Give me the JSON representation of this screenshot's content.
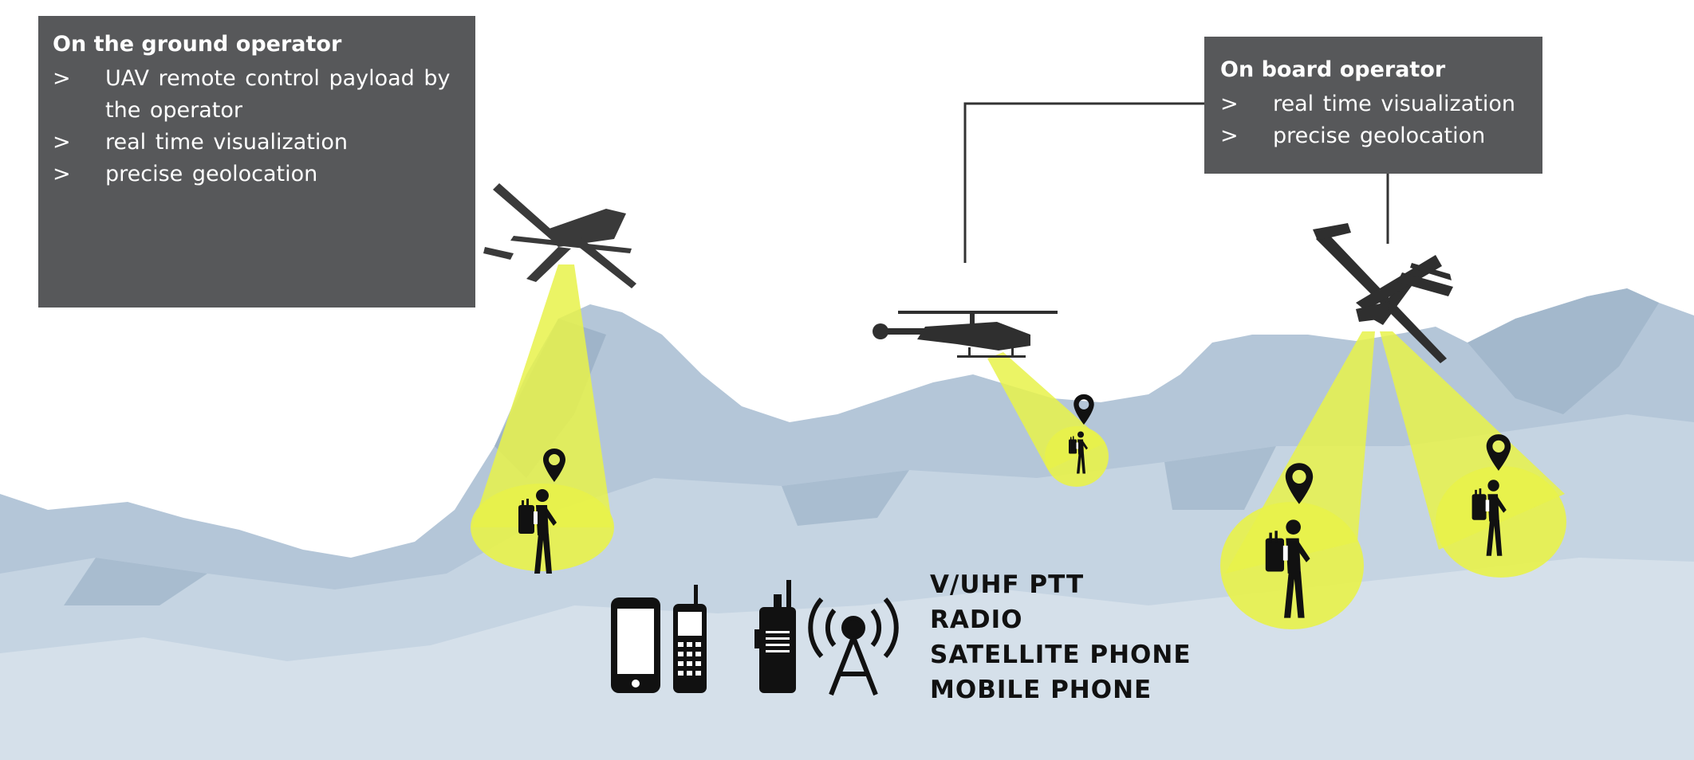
{
  "ground_operator": {
    "title": "On the ground operator",
    "bullet_marker": ">",
    "items": [
      "UAV remote control payload by the operator",
      "real time visualization",
      "precise geolocation"
    ]
  },
  "board_operator": {
    "title": "On board operator",
    "bullet_marker": ">",
    "items": [
      "real time visualization",
      "precise geolocation"
    ]
  },
  "comms": {
    "lines": [
      "V/UHF PTT",
      "RADIO",
      "SATELLITE PHONE",
      "MOBILE PHONE"
    ]
  },
  "icons": [
    "workstation-icon",
    "uav-drone-icon",
    "helicopter-icon",
    "aircraft-icon",
    "location-pin-icon",
    "hiker-icon",
    "mobile-phone-icon",
    "satellite-phone-icon",
    "ptt-radio-icon",
    "radio-tower-icon"
  ],
  "colors": {
    "box": "#57585a",
    "beam": "#e8f24a",
    "mountain": "#b4c6d8",
    "ink": "#111111"
  }
}
